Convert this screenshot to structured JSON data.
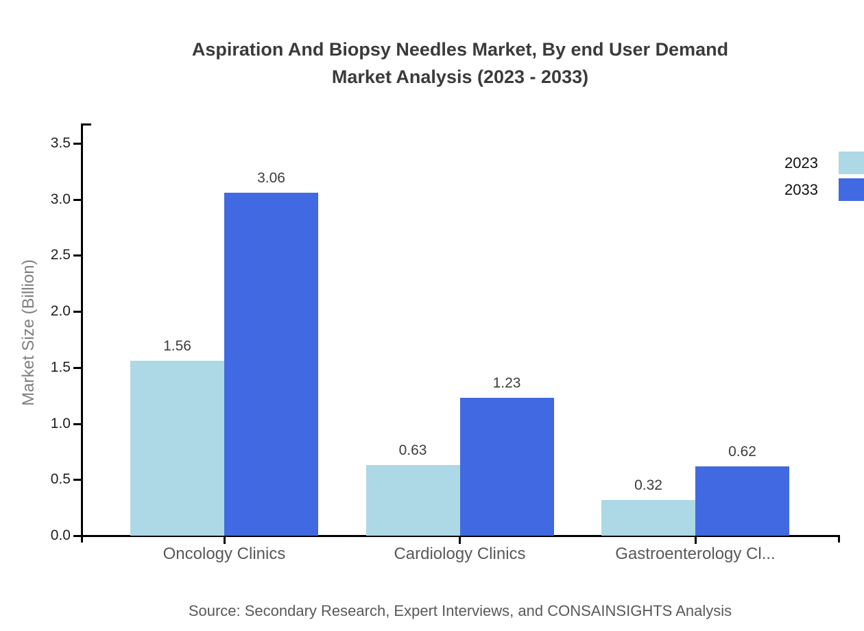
{
  "chart_data": {
    "type": "bar",
    "title": "Aspiration And Biopsy Needles Market, By end User Demand Market Analysis (2023 - 2033)",
    "title_lines": [
      "Aspiration And Biopsy Needles Market, By end User Demand",
      "Market Analysis (2023 - 2033)"
    ],
    "categories": [
      "Oncology Clinics",
      "Cardiology Clinics",
      "Gastroenterology Cl..."
    ],
    "series": [
      {
        "name": "2023",
        "color": "#ADD8E6",
        "values": [
          1.56,
          0.63,
          0.32
        ]
      },
      {
        "name": "2033",
        "color": "#4169E1",
        "values": [
          3.06,
          1.23,
          0.62
        ]
      }
    ],
    "xlabel": "",
    "ylabel": "Market Size (Billion)",
    "ylim": [
      0,
      3.5
    ],
    "ytick_step": 0.5,
    "ytick_labels": [
      "0.0",
      "0.5",
      "1.0",
      "1.5",
      "2.0",
      "2.5",
      "3.0",
      "3.5"
    ],
    "grid": false,
    "legend_position": "top-right",
    "bar_value_labels": true
  },
  "footer": {
    "source": "Source: Secondary Research, Expert Interviews, and CONSAINSIGHTS Analysis"
  },
  "colors": {
    "background": "#ffffff",
    "axis": "#000000",
    "title_text": "#3b3b3b",
    "tick_label_text": "#1f1f1f",
    "category_label_text": "#595959",
    "value_label_text": "#3d3d3d",
    "ylabel_text": "#7f7f7f",
    "source_text": "#595959",
    "series_2023": "#ADD8E6",
    "series_2033": "#4169E1"
  }
}
